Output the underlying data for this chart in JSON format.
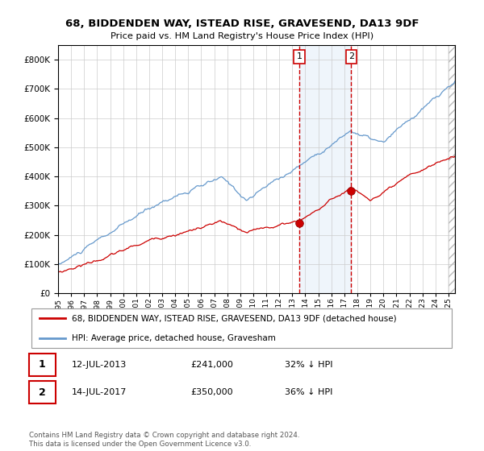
{
  "title1": "68, BIDDENDEN WAY, ISTEAD RISE, GRAVESEND, DA13 9DF",
  "title2": "Price paid vs. HM Land Registry's House Price Index (HPI)",
  "legend_property": "68, BIDDENDEN WAY, ISTEAD RISE, GRAVESEND, DA13 9DF (detached house)",
  "legend_hpi": "HPI: Average price, detached house, Gravesham",
  "note1_date": "12-JUL-2013",
  "note1_price": "£241,000",
  "note1_hpi": "32% ↓ HPI",
  "note2_date": "14-JUL-2017",
  "note2_price": "£350,000",
  "note2_hpi": "36% ↓ HPI",
  "copyright": "Contains HM Land Registry data © Crown copyright and database right 2024.\nThis data is licensed under the Open Government Licence v3.0.",
  "property_color": "#cc0000",
  "hpi_color": "#6699cc",
  "hpi_fill_color": "#ddeeff",
  "sale1_year": 2013.53,
  "sale2_year": 2017.53,
  "sale1_price": 241000,
  "sale2_price": 350000,
  "ylim": [
    0,
    850000
  ],
  "xlim_start": 1995.0,
  "xlim_end": 2025.5,
  "hatch_color": "#aaaaaa"
}
